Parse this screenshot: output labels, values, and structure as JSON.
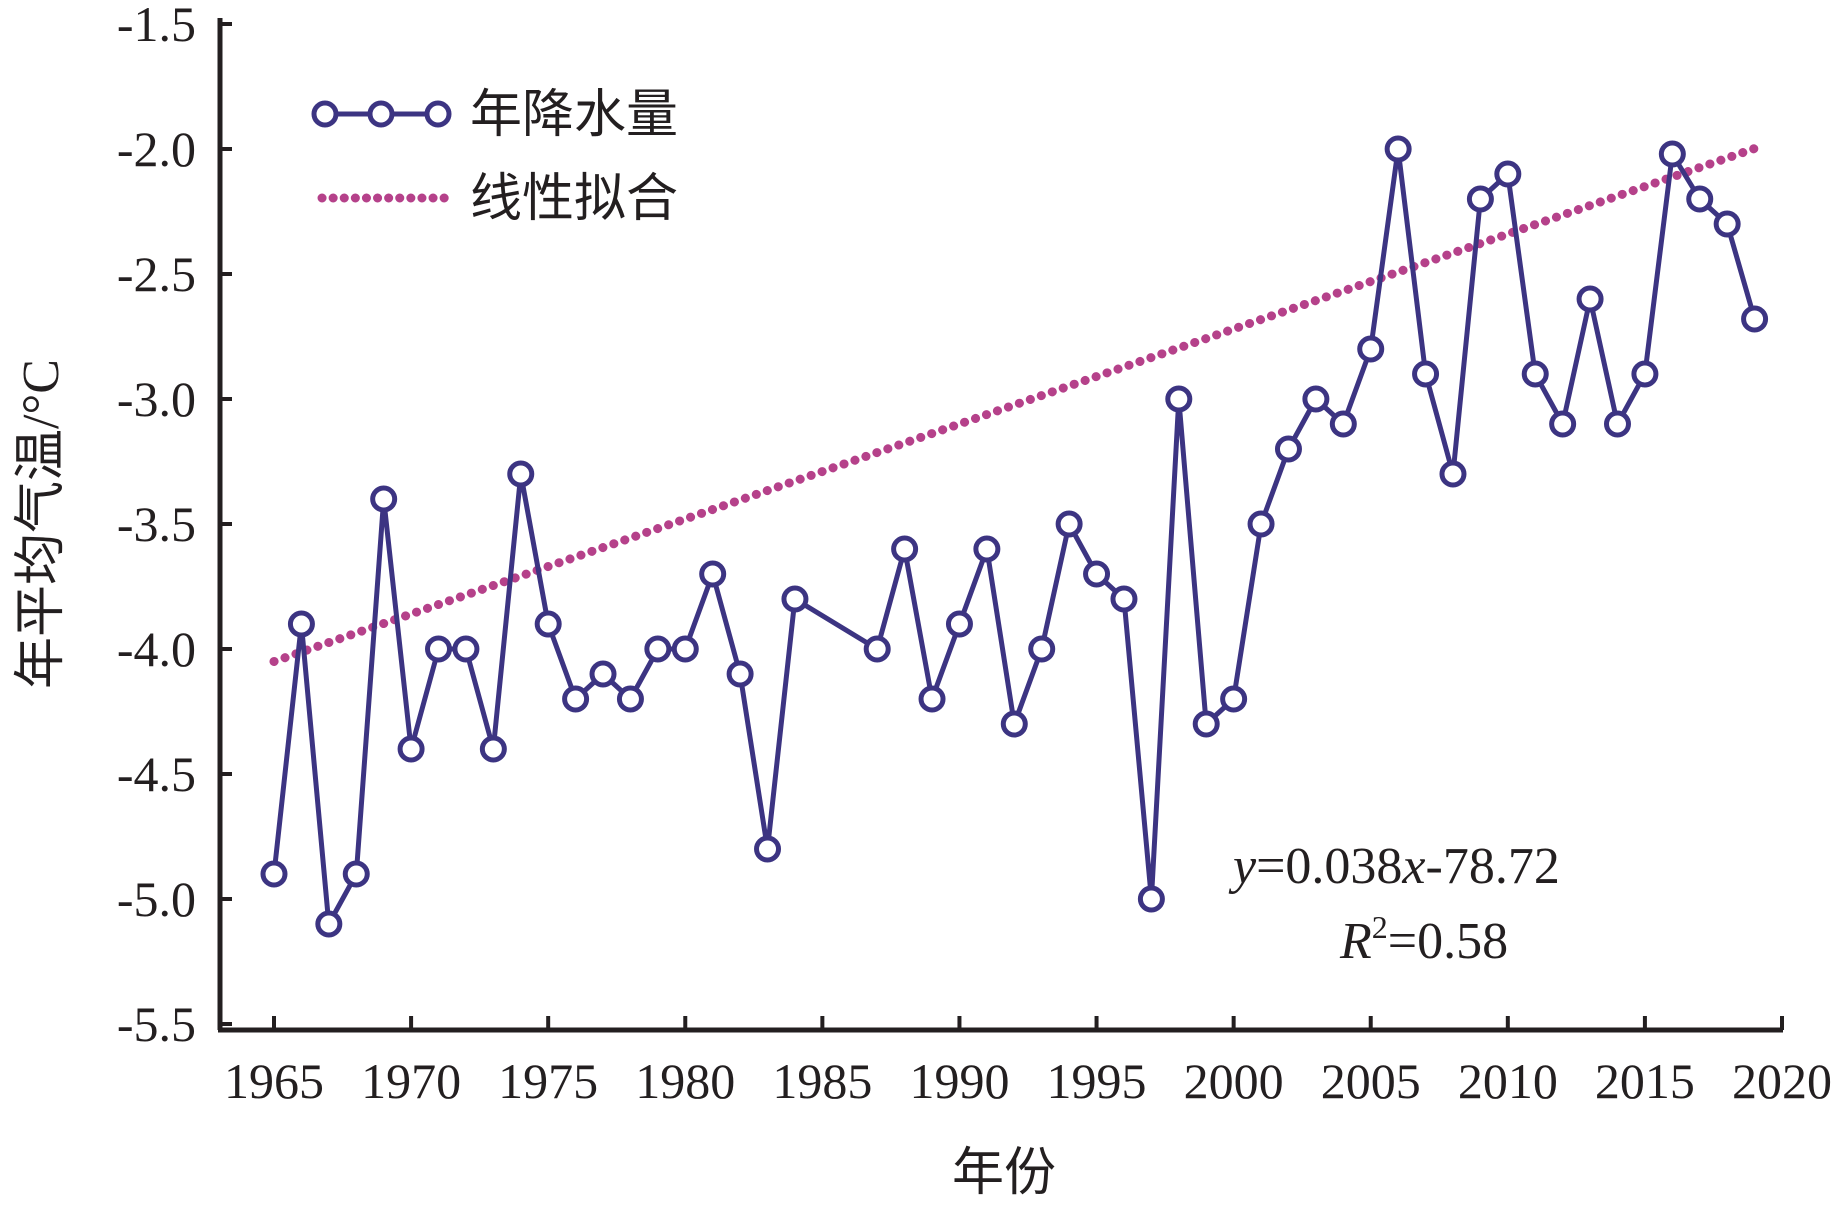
{
  "chart_data": {
    "type": "line",
    "xlabel": "年份",
    "ylabel": "年平均气温/°C",
    "xlim": [
      1965,
      2020
    ],
    "ylim": [
      -5.5,
      -1.5
    ],
    "xticks": [
      "1965",
      "1970",
      "1975",
      "1980",
      "1985",
      "1990",
      "1995",
      "2000",
      "2005",
      "2010",
      "2015",
      "2020"
    ],
    "yticks": [
      "-1.5",
      "-2.0",
      "-2.5",
      "-3.0",
      "-3.5",
      "-4.0",
      "-4.5",
      "-5.0",
      "-5.5"
    ],
    "series": [
      {
        "name": "年降水量",
        "color": "#3c3482",
        "marker": "open-circle",
        "x": [
          1965,
          1966,
          1967,
          1968,
          1969,
          1970,
          1971,
          1972,
          1973,
          1974,
          1975,
          1976,
          1977,
          1978,
          1979,
          1980,
          1981,
          1982,
          1983,
          1984,
          1987,
          1988,
          1989,
          1990,
          1991,
          1992,
          1993,
          1994,
          1995,
          1996,
          1997,
          1998,
          1999,
          2000,
          2001,
          2002,
          2003,
          2004,
          2005,
          2006,
          2007,
          2008,
          2009,
          2010,
          2011,
          2012,
          2013,
          2014,
          2015,
          2016,
          2017,
          2018,
          2019
        ],
        "y": [
          -4.9,
          -3.9,
          -5.1,
          -4.9,
          -3.4,
          -4.4,
          -4.0,
          -4.0,
          -4.4,
          -3.3,
          -3.9,
          -4.2,
          -4.1,
          -4.2,
          -4.0,
          -4.0,
          -3.7,
          -4.1,
          -4.8,
          -3.8,
          -4.0,
          -3.6,
          -4.2,
          -3.9,
          -3.6,
          -4.3,
          -4.0,
          -3.5,
          -3.7,
          -3.8,
          -5.0,
          -3.0,
          -4.3,
          -4.2,
          -3.5,
          -3.2,
          -3.0,
          -3.1,
          -2.8,
          -2.0,
          -2.9,
          -3.3,
          -2.2,
          -2.1,
          -2.9,
          -3.1,
          -2.6,
          -3.1,
          -2.9,
          -2.02,
          -2.2,
          -2.3,
          -2.68
        ]
      },
      {
        "name": "线性拟合",
        "color": "#b5418a",
        "style": "dotted",
        "slope": 0.038,
        "intercept": -78.72,
        "x": [
          1965,
          2019
        ]
      }
    ],
    "legend": {
      "position": "top-left",
      "entries": [
        "年降水量",
        "线性拟合"
      ]
    },
    "annotation": {
      "eq_y": "y",
      "eq_mid": "=0.038",
      "eq_x": "x",
      "eq_rest": "-78.72",
      "r_letter": "R",
      "r_sup": "2",
      "r_value": "=0.58"
    },
    "grid": false
  }
}
